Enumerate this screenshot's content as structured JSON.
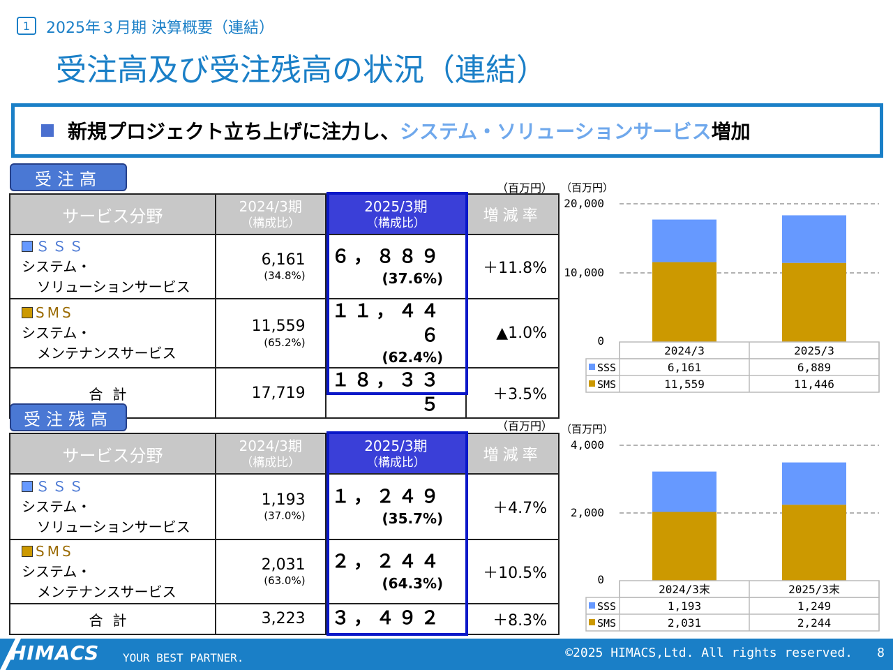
{
  "header": {
    "section_number": "1",
    "subtitle": "2025年３月期 決算概要（連結）",
    "title": "受注高及び受注残高の状況（連結）"
  },
  "banner": {
    "text_before": "新規プロジェクト立ち上げに注力し、",
    "highlight": "システム・ソリューションサービス",
    "text_after": "増加"
  },
  "orders": {
    "tag": "受注高",
    "unit": "（百万円）",
    "headers": {
      "category": "サービス分野",
      "prev_year": "2024/3期",
      "prev_sub": "（構成比）",
      "cur_year": "2025/3期",
      "cur_sub": "（構成比）",
      "rate": "増減率"
    },
    "rows": [
      {
        "code": "ＳＳＳ",
        "name1": "システム・",
        "name2": "ソリューションサービス",
        "prev": "6,161",
        "prev_pct": "(34.8%)",
        "cur": "６，８８９",
        "cur_pct": "(37.6%)",
        "rate": "＋11.8%"
      },
      {
        "code": "SMS",
        "name1": "システム・",
        "name2": "メンテナンスサービス",
        "prev": "11,559",
        "prev_pct": "(65.2%)",
        "cur": "１１，４４６",
        "cur_pct": "(62.4%)",
        "rate": "▲1.0%"
      }
    ],
    "total": {
      "label": "合計",
      "prev": "17,719",
      "cur": "１８，３３５",
      "rate": "＋3.5%"
    }
  },
  "backlog": {
    "tag": "受注残高",
    "unit": "（百万円）",
    "headers": {
      "category": "サービス分野",
      "prev_year": "2024/3期",
      "prev_sub": "（構成比）",
      "cur_year": "2025/3期",
      "cur_sub": "（構成比）",
      "rate": "増減率"
    },
    "rows": [
      {
        "code": "ＳＳＳ",
        "name1": "システム・",
        "name2": "ソリューションサービス",
        "prev": "1,193",
        "prev_pct": "(37.0%)",
        "cur": "１，２４９",
        "cur_pct": "(35.7%)",
        "rate": "＋4.7%"
      },
      {
        "code": "SMS",
        "name1": "システム・",
        "name2": "メンテナンスサービス",
        "prev": "2,031",
        "prev_pct": "(63.0%)",
        "cur": "２，２４４",
        "cur_pct": "(64.3%)",
        "rate": "＋10.5%"
      }
    ],
    "total": {
      "label": "合計",
      "prev": "3,223",
      "cur": "３，４９２",
      "rate": "＋8.3%"
    }
  },
  "chart_data": [
    {
      "type": "bar",
      "stacked": true,
      "unit_label": "（百万円）",
      "categories": [
        "2024/3",
        "2025/3"
      ],
      "series": [
        {
          "name": "SMS",
          "values": [
            11559,
            11446
          ],
          "value_labels": [
            "11,559",
            "11,446"
          ],
          "color": "#cc9900"
        },
        {
          "name": "SSS",
          "values": [
            6161,
            6889
          ],
          "value_labels": [
            "6,161",
            "6,889"
          ],
          "color": "#6699ff"
        }
      ],
      "ylim": [
        0,
        20000
      ],
      "yticks": [
        0,
        10000,
        20000
      ],
      "ytick_labels": [
        "0",
        "10,000",
        "20,000"
      ],
      "grid": "dashed",
      "legend": "data-table"
    },
    {
      "type": "bar",
      "stacked": true,
      "unit_label": "（百万円）",
      "categories": [
        "2024/3末",
        "2025/3末"
      ],
      "series": [
        {
          "name": "SMS",
          "values": [
            2031,
            2244
          ],
          "value_labels": [
            "2,031",
            "2,244"
          ],
          "color": "#cc9900"
        },
        {
          "name": "SSS",
          "values": [
            1193,
            1249
          ],
          "value_labels": [
            "1,193",
            "1,249"
          ],
          "color": "#6699ff"
        }
      ],
      "ylim": [
        0,
        4000
      ],
      "yticks": [
        0,
        2000,
        4000
      ],
      "ytick_labels": [
        "0",
        "2,000",
        "4,000"
      ],
      "grid": "dashed",
      "legend": "data-table"
    }
  ],
  "footer": {
    "logo": "HIMACS",
    "tagline": "YOUR BEST PARTNER.",
    "copyright": "©2025 HIMACS,Ltd. All rights reserved.",
    "page": "8"
  },
  "colors": {
    "brand_blue": "#1a7fc7",
    "sss": "#6699ff",
    "sms": "#cc9900",
    "highlight_border": "#0a18c8"
  }
}
